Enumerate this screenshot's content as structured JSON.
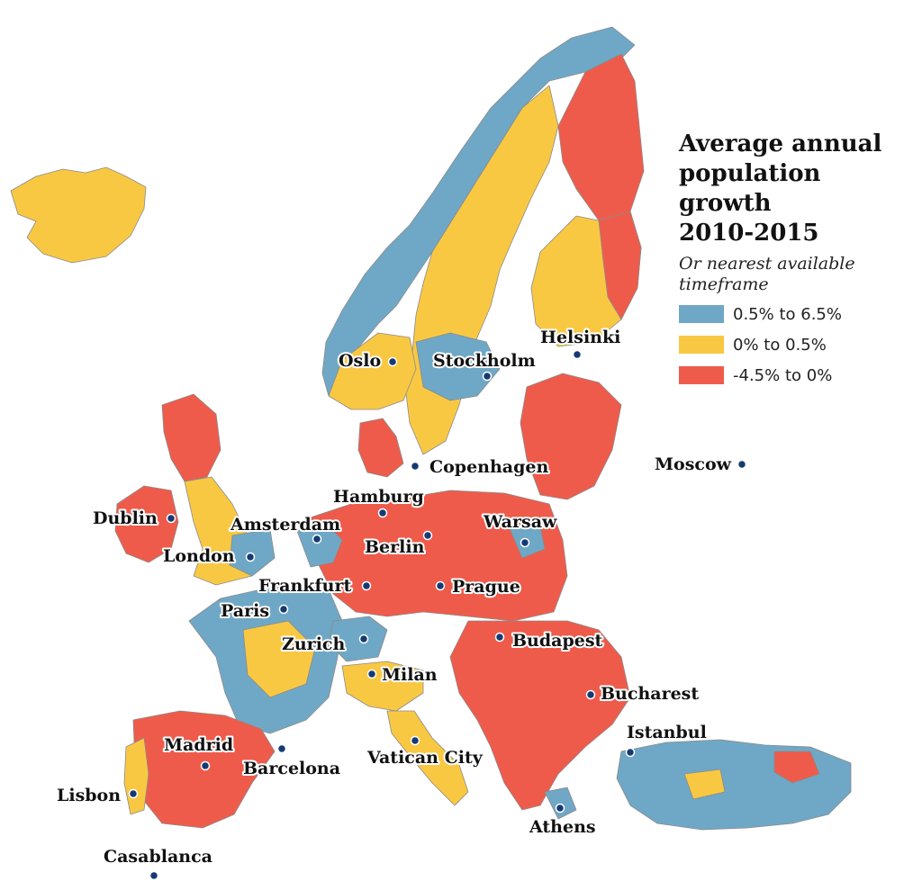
{
  "legend": {
    "title_lines": [
      "Average annual",
      "population growth",
      "2010-2015"
    ],
    "subtitle_lines": [
      "Or nearest available",
      "timeframe"
    ],
    "items": [
      {
        "label": "0.5% to 6.5%",
        "color": "#6fa8c6"
      },
      {
        "label": "0% to 0.5%",
        "color": "#f9c843"
      },
      {
        "label": "-4.5% to 0%",
        "color": "#ef5b4b"
      }
    ]
  },
  "cities": [
    {
      "name": "Oslo"
    },
    {
      "name": "Stockholm"
    },
    {
      "name": "Helsinki"
    },
    {
      "name": "Copenhagen"
    },
    {
      "name": "Moscow"
    },
    {
      "name": "Hamburg"
    },
    {
      "name": "Dublin"
    },
    {
      "name": "Amsterdam"
    },
    {
      "name": "Warsaw"
    },
    {
      "name": "Berlin"
    },
    {
      "name": "London"
    },
    {
      "name": "Frankfurt"
    },
    {
      "name": "Prague"
    },
    {
      "name": "Paris"
    },
    {
      "name": "Budapest"
    },
    {
      "name": "Zurich"
    },
    {
      "name": "Milan"
    },
    {
      "name": "Bucharest"
    },
    {
      "name": "Istanbul"
    },
    {
      "name": "Madrid"
    },
    {
      "name": "Barcelona"
    },
    {
      "name": "Vatican City"
    },
    {
      "name": "Lisbon"
    },
    {
      "name": "Athens"
    },
    {
      "name": "Casablanca"
    }
  ],
  "colors": {
    "growth_high": "#6fa8c6",
    "growth_low": "#f9c843",
    "decline": "#ef5b4b",
    "city_dot": "#153a73"
  }
}
